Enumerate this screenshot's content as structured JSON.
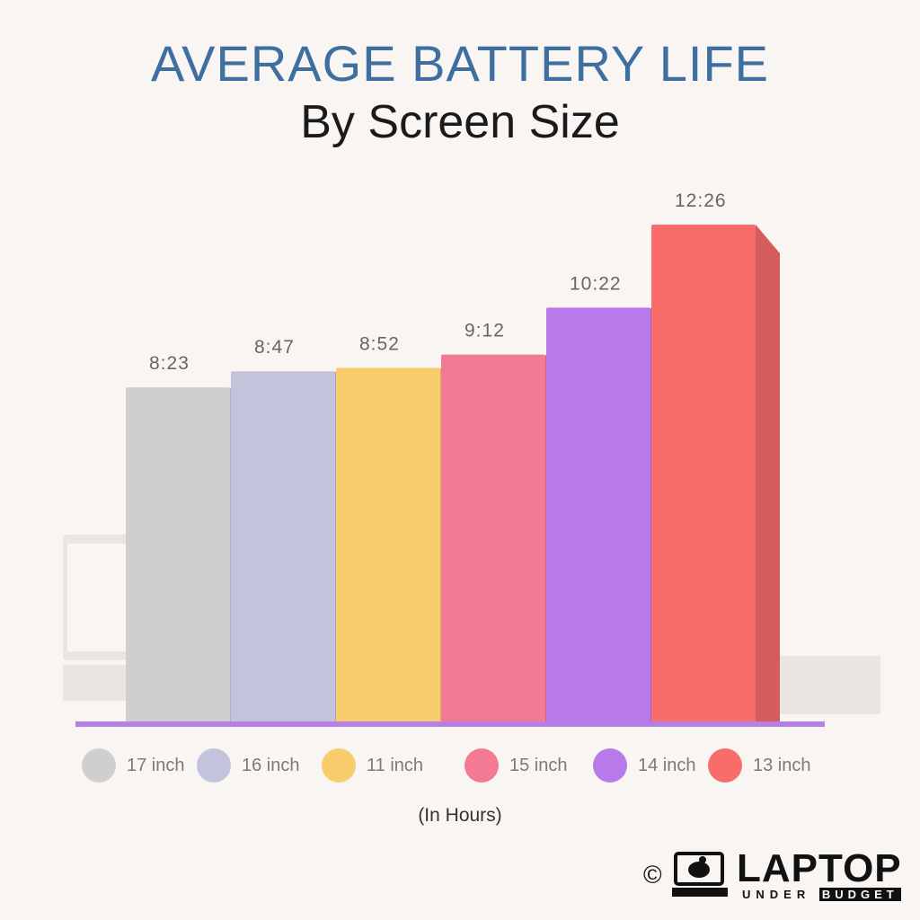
{
  "title": "AVERAGE BATTERY LIFE",
  "subtitle": "By Screen Size",
  "unit_note": "(In Hours)",
  "logo": {
    "copyright": "©",
    "word": "LAPTOP",
    "sub_light": "UNDER",
    "sub_dark": "BUDGET"
  },
  "chart_data": {
    "type": "bar",
    "title": "AVERAGE BATTERY LIFE",
    "subtitle": "By Screen Size",
    "ylabel": "(In Hours)",
    "categories": [
      "17 inch",
      "16 inch",
      "11 inch",
      "15 inch",
      "14 inch",
      "13 inch"
    ],
    "values_hhmm": [
      "8:23",
      "8:47",
      "8:52",
      "9:12",
      "10:22",
      "12:26"
    ],
    "values_hours": [
      8.383,
      8.783,
      8.867,
      9.2,
      10.367,
      12.433
    ],
    "colors": [
      "#cfcfcf",
      "#c3c3dc",
      "#f9cc6c",
      "#f27a93",
      "#b87ae9",
      "#f96c6c"
    ],
    "axis_color": "#b57fe6",
    "grid": false,
    "legend_position": "bottom"
  }
}
